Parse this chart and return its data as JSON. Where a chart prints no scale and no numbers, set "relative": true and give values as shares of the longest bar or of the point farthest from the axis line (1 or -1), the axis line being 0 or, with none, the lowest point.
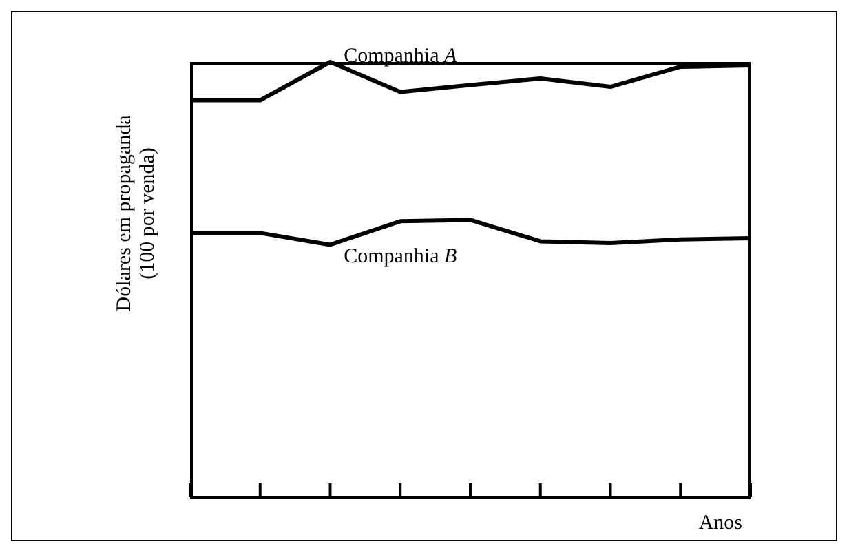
{
  "chart_data": {
    "type": "line",
    "relative": true,
    "xlabel": "Anos",
    "ylabel": "Dólares em propaganda\n(100 por venda)",
    "categories": [
      null,
      null,
      null,
      null,
      null,
      null,
      null,
      null,
      null
    ],
    "series": [
      {
        "name": "Companhia A",
        "color": "#000000",
        "values": [
          0.912,
          0.912,
          1,
          0.931,
          0.947,
          0.962,
          0.943,
          0.989,
          0.992
        ]
      },
      {
        "name": "Companhia B",
        "color": "#000000",
        "values": [
          0.607,
          0.607,
          0.58,
          0.634,
          0.637,
          0.588,
          0.584,
          0.592,
          0.595
        ]
      }
    ],
    "legend": false,
    "grid": false,
    "marker": "none",
    "line_style": "solid"
  }
}
